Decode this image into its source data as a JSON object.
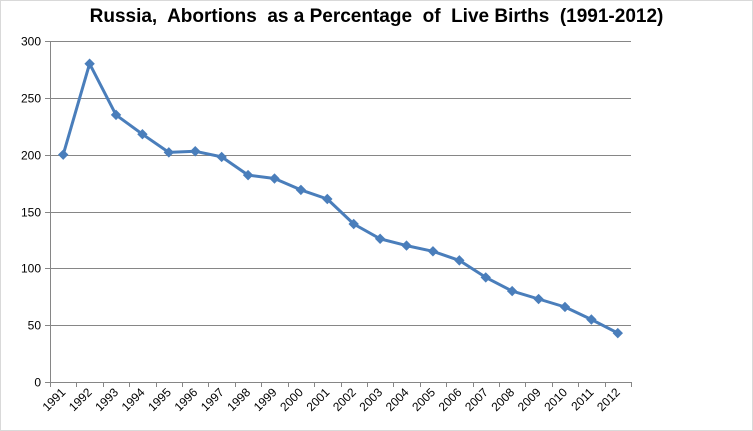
{
  "chart_data": {
    "type": "line",
    "title": "Russia,  Abortions  as a Percentage  of  Live Births  (1991-2012)",
    "xlabel": "",
    "ylabel": "",
    "categories": [
      "1991",
      "1992",
      "1993",
      "1994",
      "1995",
      "1996",
      "1997",
      "1998",
      "1999",
      "2000",
      "2001",
      "2002",
      "2003",
      "2004",
      "2005",
      "2006",
      "2007",
      "2008",
      "2009",
      "2010",
      "2011",
      "2012"
    ],
    "series": [
      {
        "values": [
          200,
          280,
          235,
          218,
          202,
          203,
          198,
          182,
          179,
          169,
          161,
          139,
          126,
          120,
          115,
          107,
          92,
          80,
          73,
          66,
          55,
          43
        ]
      }
    ],
    "ylim": [
      0,
      300
    ],
    "yticks": [
      0,
      50,
      100,
      150,
      200,
      250,
      300
    ],
    "grid": true,
    "legend": "none",
    "colors": {
      "line": "#4a7ebb",
      "grid": "#868686",
      "axis": "#868686"
    }
  }
}
